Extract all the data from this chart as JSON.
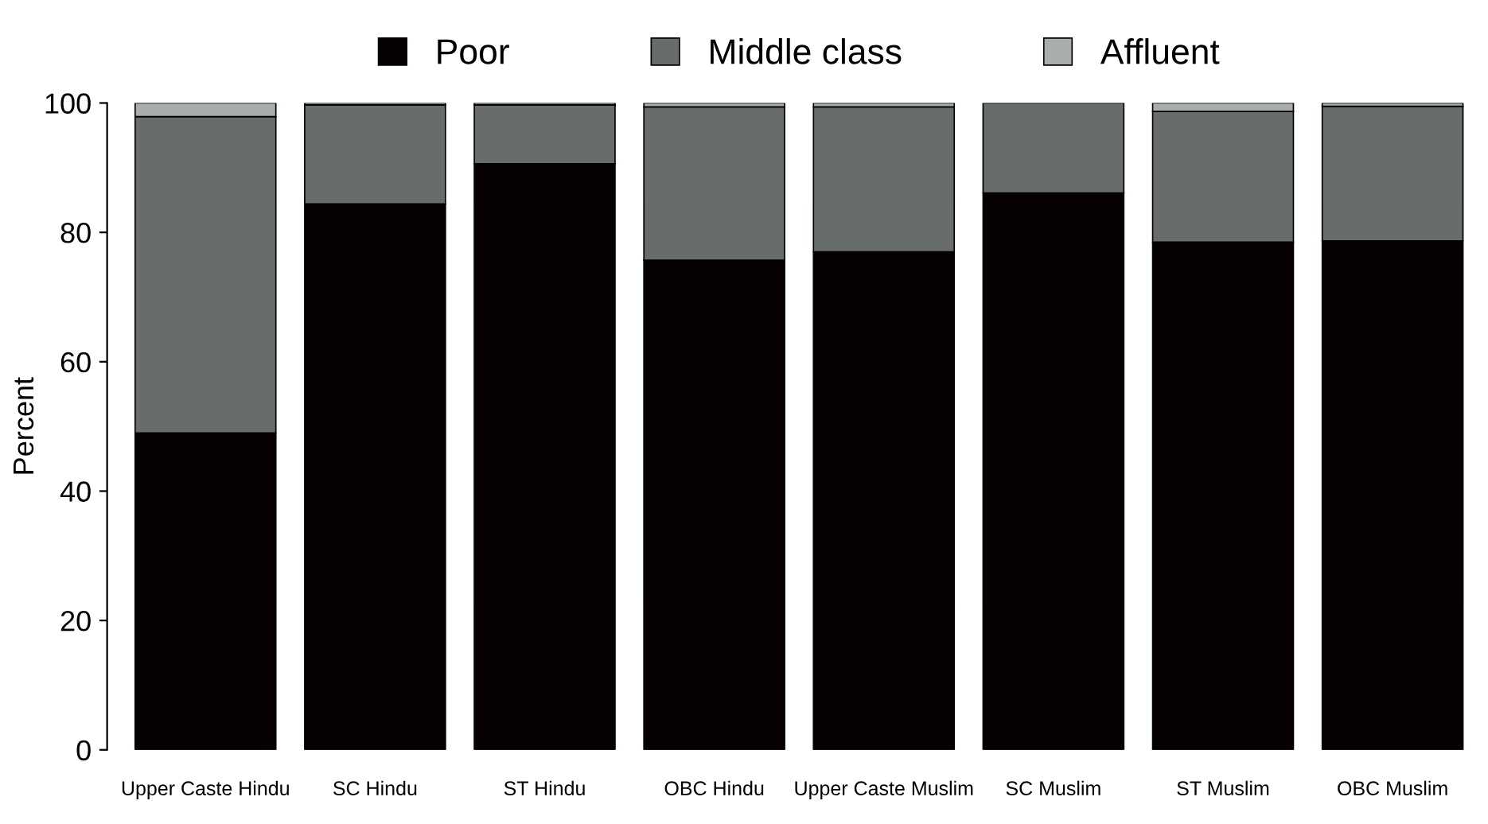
{
  "chart_data": {
    "type": "bar",
    "stacked": true,
    "ylabel": "Percent",
    "categories": [
      "Upper Caste Hindu",
      "SC Hindu",
      "ST Hindu",
      "OBC Hindu",
      "Upper Caste Muslim",
      "SC Muslim",
      "ST Muslim",
      "OBC Muslim"
    ],
    "series": [
      {
        "name": "Poor",
        "color": "#060000",
        "values": [
          49.0,
          84.4,
          90.6,
          75.7,
          77.0,
          86.1,
          78.5,
          78.7
        ]
      },
      {
        "name": "Middle class",
        "color": "#686c6b",
        "values": [
          48.9,
          15.3,
          9.1,
          23.7,
          22.4,
          13.9,
          20.2,
          20.8
        ]
      },
      {
        "name": "Affluent",
        "color": "#a9adac",
        "values": [
          2.1,
          0.3,
          0.3,
          0.6,
          0.6,
          null,
          1.3,
          0.5
        ]
      }
    ],
    "ylim": [
      0,
      100
    ],
    "yticks": [
      0,
      20,
      40,
      60,
      80,
      100
    ],
    "grid": false,
    "legend": "top"
  }
}
